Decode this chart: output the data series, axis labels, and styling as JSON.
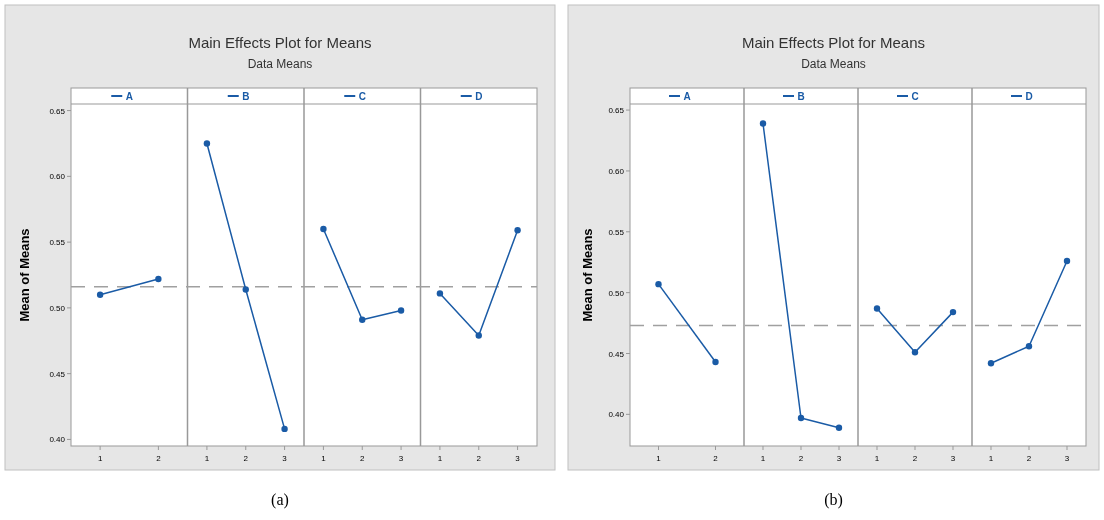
{
  "chart_data": [
    {
      "type": "line",
      "title": "Main Effects Plot for Means",
      "subtitle": "Data Means",
      "ylabel": "Mean of Means",
      "annotations": [
        "(a)"
      ],
      "categories": [
        "1",
        "2",
        "1",
        "2",
        "3",
        "1",
        "2",
        "3",
        "1",
        "2",
        "3"
      ],
      "series": [
        {
          "name": "A",
          "color": "#1a5ba6",
          "values": [
            0.51,
            0.522,
            null,
            null,
            null,
            null,
            null,
            null,
            null,
            null,
            null
          ]
        },
        {
          "name": "B",
          "color": "#1a5ba6",
          "values": [
            null,
            null,
            0.625,
            0.514,
            0.408,
            null,
            null,
            null,
            null,
            null,
            null
          ]
        },
        {
          "name": "C",
          "color": "#1a5ba6",
          "values": [
            null,
            null,
            null,
            null,
            null,
            0.56,
            0.491,
            0.498,
            null,
            null,
            null
          ]
        },
        {
          "name": "D",
          "color": "#1a5ba6",
          "values": [
            null,
            null,
            null,
            null,
            null,
            null,
            null,
            null,
            0.511,
            0.479,
            0.559
          ]
        }
      ],
      "ylim": [
        0.395,
        0.655
      ],
      "yticks": [
        {
          "value": 0.4,
          "label": "0.40"
        },
        {
          "value": 0.45,
          "label": "0.45"
        },
        {
          "value": 0.5,
          "label": "0.50"
        },
        {
          "value": 0.55,
          "label": "0.55"
        },
        {
          "value": 0.6,
          "label": "0.60"
        },
        {
          "value": 0.65,
          "label": "0.65"
        }
      ],
      "ref_lines": [
        {
          "axis": "y",
          "value": 0.516,
          "color": "#a0a0a0",
          "line_style": "dashed"
        }
      ],
      "marker": "circle",
      "grid": false,
      "legend": "top"
    },
    {
      "type": "line",
      "title": "Main Effects Plot for Means",
      "subtitle": "Data Means",
      "ylabel": "Mean of Means",
      "annotations": [
        "(b)"
      ],
      "categories": [
        "1",
        "2",
        "1",
        "2",
        "3",
        "1",
        "2",
        "3",
        "1",
        "2",
        "3"
      ],
      "series": [
        {
          "name": "A",
          "color": "#1a5ba6",
          "values": [
            0.507,
            0.443,
            null,
            null,
            null,
            null,
            null,
            null,
            null,
            null,
            null
          ]
        },
        {
          "name": "B",
          "color": "#1a5ba6",
          "values": [
            null,
            null,
            0.639,
            0.397,
            0.389,
            null,
            null,
            null,
            null,
            null,
            null
          ]
        },
        {
          "name": "C",
          "color": "#1a5ba6",
          "values": [
            null,
            null,
            null,
            null,
            null,
            0.487,
            0.451,
            0.484,
            null,
            null,
            null
          ]
        },
        {
          "name": "D",
          "color": "#1a5ba6",
          "values": [
            null,
            null,
            null,
            null,
            null,
            null,
            null,
            null,
            0.442,
            0.456,
            0.526
          ]
        }
      ],
      "ylim": [
        0.374,
        0.655
      ],
      "yticks": [
        {
          "value": 0.4,
          "label": "0.40"
        },
        {
          "value": 0.45,
          "label": "0.45"
        },
        {
          "value": 0.5,
          "label": "0.50"
        },
        {
          "value": 0.55,
          "label": "0.55"
        },
        {
          "value": 0.6,
          "label": "0.60"
        },
        {
          "value": 0.65,
          "label": "0.65"
        }
      ],
      "ref_lines": [
        {
          "axis": "y",
          "value": 0.473,
          "color": "#a0a0a0",
          "line_style": "dashed"
        }
      ],
      "marker": "circle",
      "grid": false,
      "legend": "top"
    }
  ]
}
